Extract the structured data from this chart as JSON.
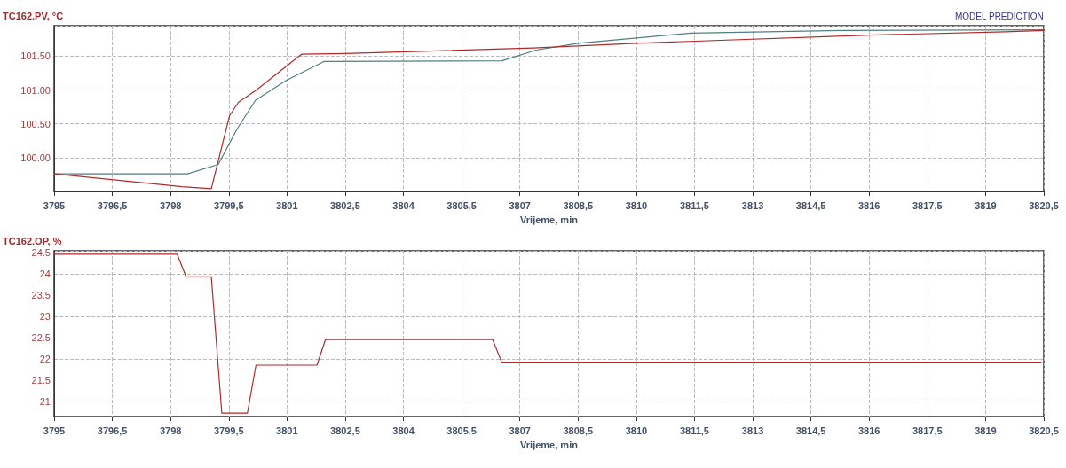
{
  "chart_data": [
    {
      "type": "line",
      "ylabel": "TC162.PV, °C",
      "xlabel": "Vrijeme, min",
      "annotations": [
        "MODEL PREDICTION"
      ],
      "xlim": [
        3795,
        3820.5
      ],
      "xticks": [
        3795,
        {
          "value": 3796.5,
          "label": "3796,5"
        },
        3798,
        {
          "value": 3799.5,
          "label": "3799,5"
        },
        3801,
        {
          "value": 3802.5,
          "label": "3802,5"
        },
        3804,
        {
          "value": 3805.5,
          "label": "3805,5"
        },
        3807,
        {
          "value": 3808.5,
          "label": "3808,5"
        },
        3810,
        {
          "value": 3811.5,
          "label": "3811,5"
        },
        3813,
        {
          "value": 3814.5,
          "label": "3814,5"
        },
        3816,
        {
          "value": 3817.5,
          "label": "3817,5"
        },
        3819,
        {
          "value": 3820.5,
          "label": "3820,5"
        }
      ],
      "ylim": [
        99.5,
        101.95
      ],
      "yticks": [
        {
          "value": 100,
          "label": "100.00"
        },
        {
          "value": 100.5,
          "label": "100.50"
        },
        {
          "value": 101,
          "label": "101.00"
        },
        {
          "value": 101.5,
          "label": "101.50"
        }
      ],
      "grid": true,
      "line_style": "solid",
      "series": [
        {
          "color": "#4f7f7f",
          "x": [
            3795,
            3798.44,
            3799.23,
            3799.71,
            3800.19,
            3800.98,
            3801.95,
            3806.54,
            3807.42,
            3808.5,
            3811.4,
            3815.3,
            3820.5
          ],
          "values": [
            99.76,
            99.76,
            99.9,
            100.42,
            100.85,
            101.14,
            101.42,
            101.43,
            101.59,
            101.69,
            101.84,
            101.88,
            101.89
          ]
        },
        {
          "color": "#b02a2a",
          "x": [
            3795,
            3798.3,
            3799.05,
            3799.52,
            3799.75,
            3800.19,
            3801.38,
            3802.5,
            3807.35,
            3810,
            3816,
            3819.5,
            3820.5
          ],
          "values": [
            99.76,
            99.57,
            99.54,
            100.62,
            100.82,
            100.99,
            101.53,
            101.54,
            101.62,
            101.69,
            101.81,
            101.86,
            101.88
          ]
        }
      ]
    },
    {
      "type": "line",
      "ylabel": "TC162.OP, %",
      "xlabel": "Vrijeme, min",
      "xlim": [
        3795,
        3820.5
      ],
      "xticks": [
        3795,
        {
          "value": 3796.5,
          "label": "3796,5"
        },
        3798,
        {
          "value": 3799.5,
          "label": "3799,5"
        },
        3801,
        {
          "value": 3802.5,
          "label": "3802,5"
        },
        3804,
        {
          "value": 3805.5,
          "label": "3805,5"
        },
        3807,
        {
          "value": 3808.5,
          "label": "3808,5"
        },
        3810,
        {
          "value": 3811.5,
          "label": "3811,5"
        },
        3813,
        {
          "value": 3814.5,
          "label": "3814,5"
        },
        3816,
        {
          "value": 3817.5,
          "label": "3817,5"
        },
        3819,
        {
          "value": 3820.5,
          "label": "3820,5"
        }
      ],
      "ylim": [
        20.65,
        24.55
      ],
      "yticks": [
        21,
        21.5,
        22,
        22.5,
        23,
        23.5,
        24,
        24.5
      ],
      "grid": true,
      "line_style": "solid",
      "series": [
        {
          "color": "#b02a2a",
          "x": [
            3795,
            3798.17,
            3798.4,
            3799.05,
            3799.32,
            3799.98,
            3800.2,
            3801.77,
            3801.99,
            3806.3,
            3806.53,
            3820.44
          ],
          "values": [
            24.47,
            24.47,
            23.94,
            23.94,
            20.73,
            20.73,
            21.86,
            21.86,
            22.46,
            22.46,
            21.93,
            21.93
          ]
        }
      ]
    }
  ]
}
